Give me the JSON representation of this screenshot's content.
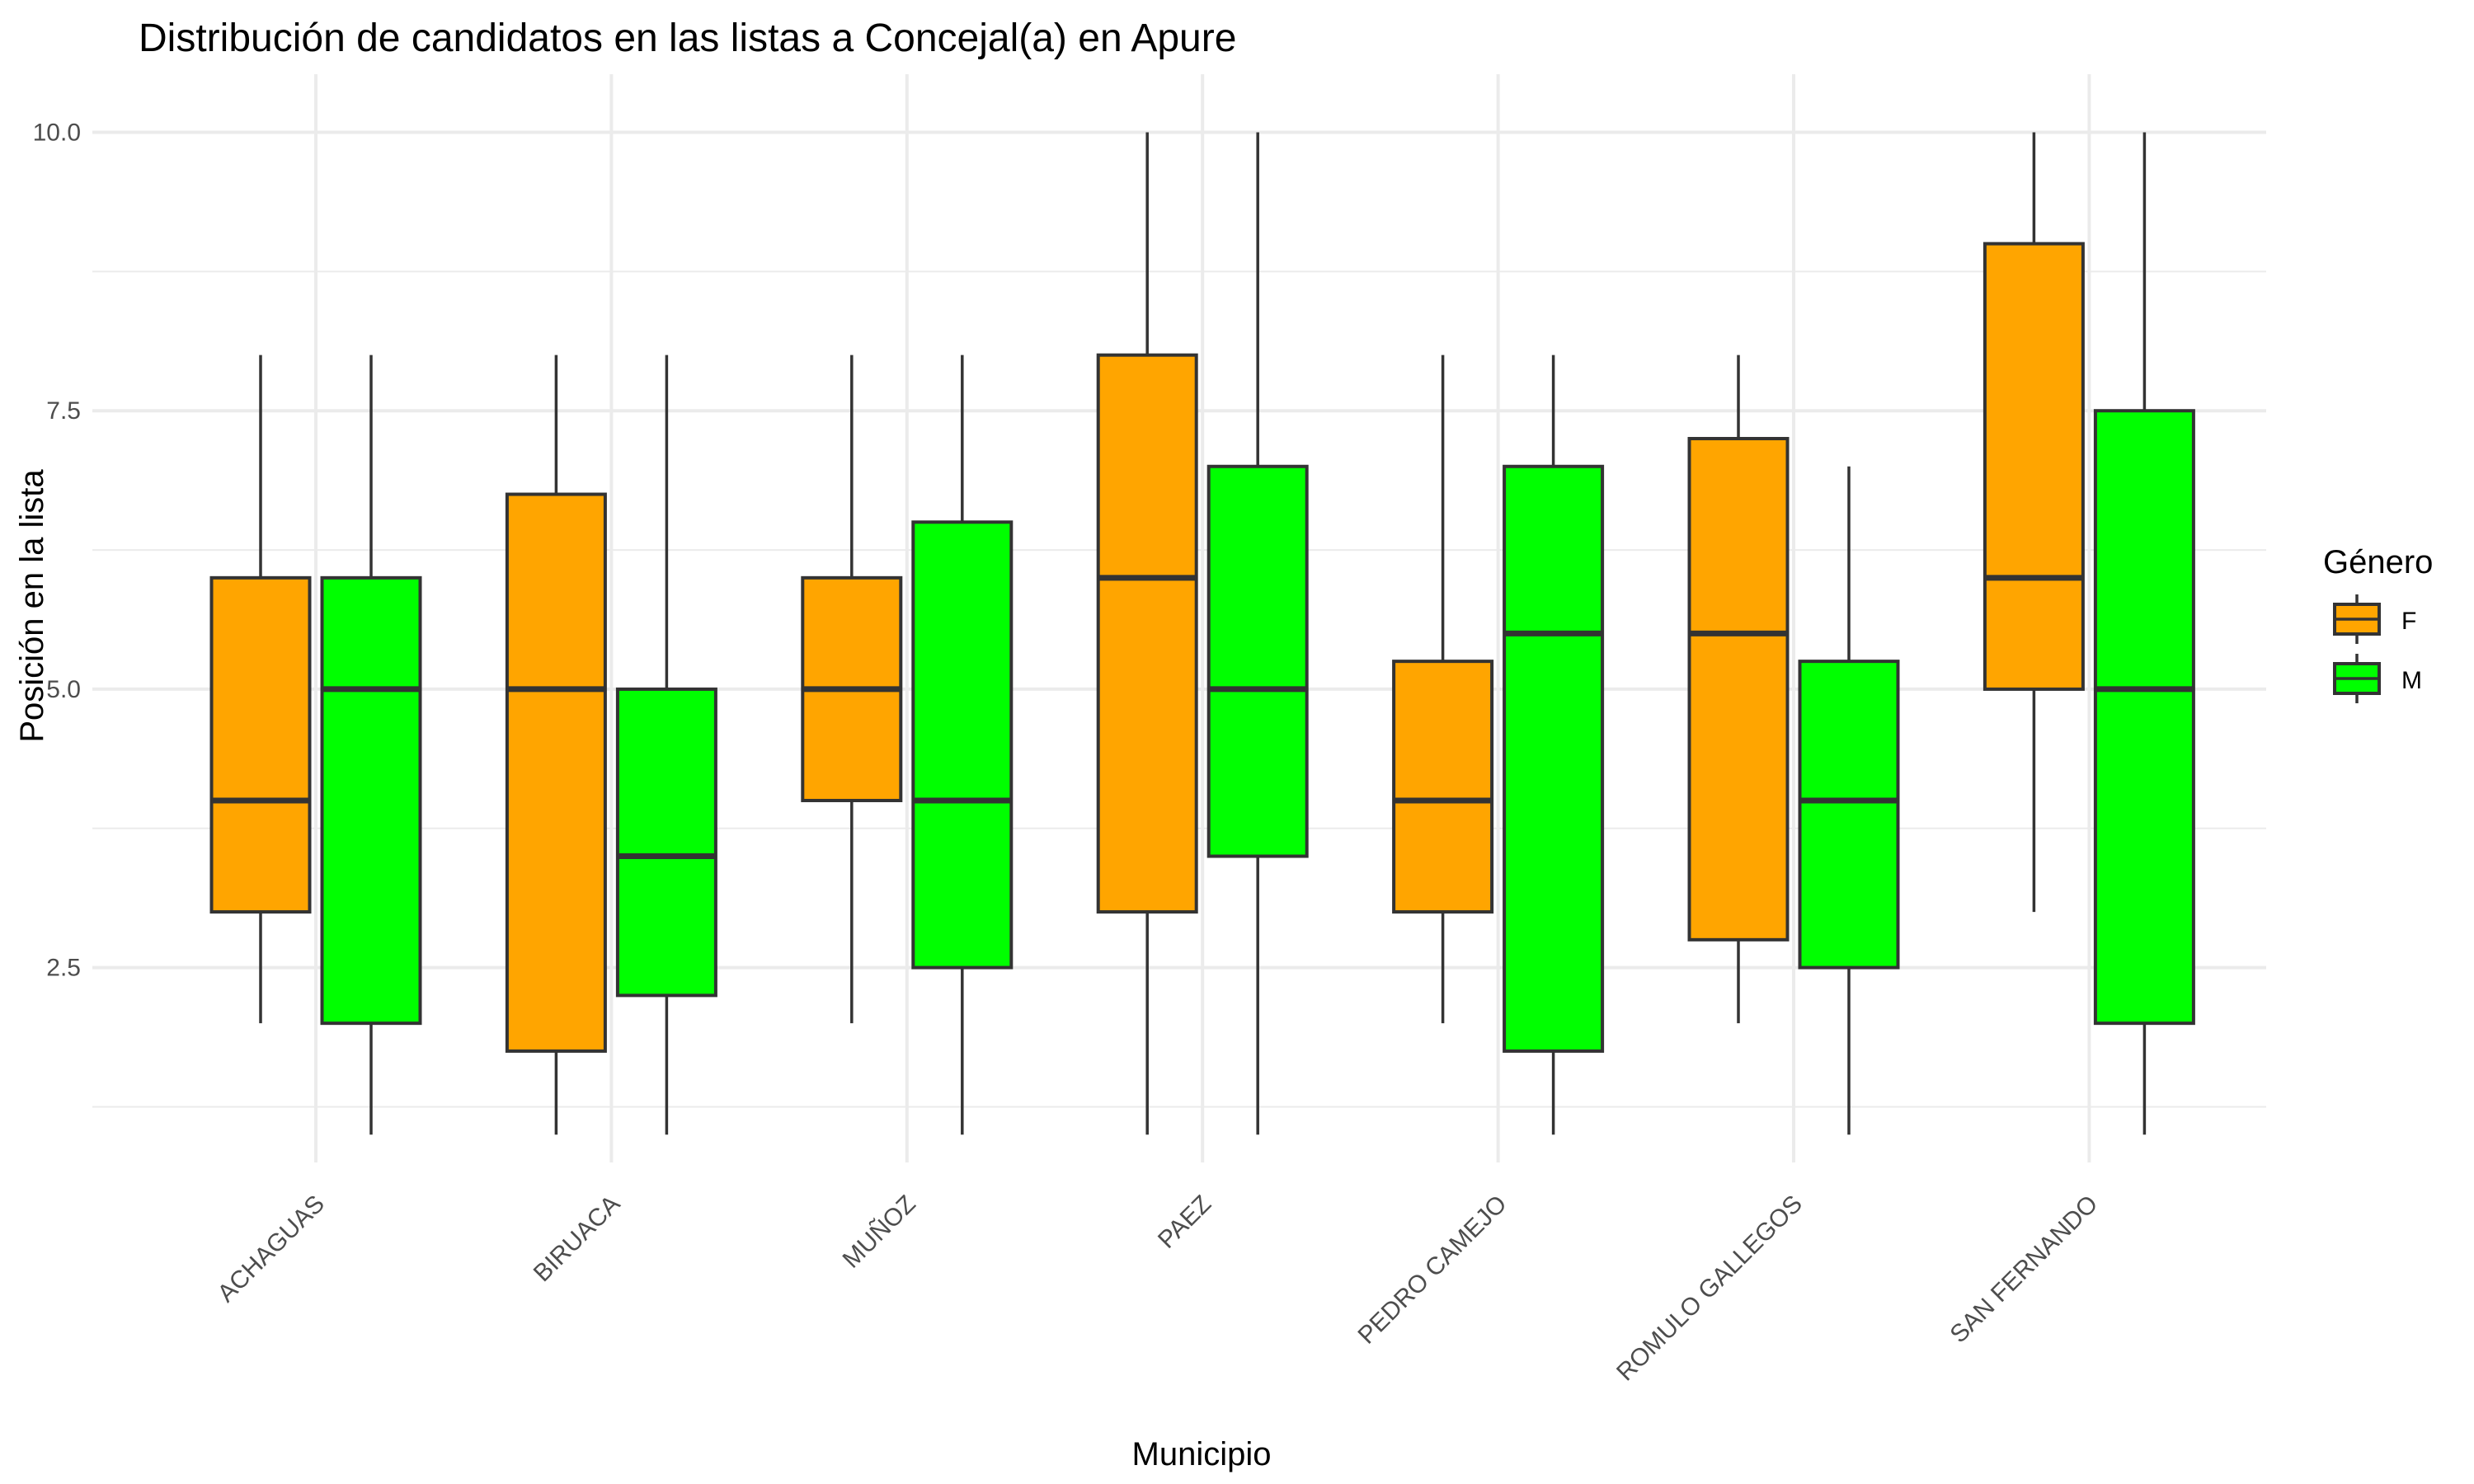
{
  "chart_data": {
    "type": "boxplot",
    "title": "Distribución de candidatos en las listas a Concejal(a) en Apure",
    "xlabel": "Municipio",
    "ylabel": "Posición en la lista",
    "ylim": [
      0.75,
      10.3
    ],
    "y_ticks": [
      "2.5",
      "5.0",
      "7.5",
      "10.0"
    ],
    "categories": [
      "ACHAGUAS",
      "BIRUACA",
      "MUÑOZ",
      "PAEZ",
      "PEDRO CAMEJO",
      "ROMULO GALLEGOS",
      "SAN FERNANDO"
    ],
    "legend": {
      "title": "Género",
      "placement": "right",
      "items": [
        {
          "key": "F",
          "label": "F",
          "color": "#FFA500"
        },
        {
          "key": "M",
          "label": "M",
          "color": "#00FF00"
        }
      ]
    },
    "grid": true,
    "series": [
      {
        "key": "F",
        "color": "#FFA500",
        "boxes": [
          {
            "min": 2,
            "q1": 3,
            "median": 4,
            "q3": 6,
            "max": 8
          },
          {
            "min": 1,
            "q1": 1.75,
            "median": 5,
            "q3": 6.75,
            "max": 8
          },
          {
            "min": 2,
            "q1": 4,
            "median": 5,
            "q3": 6,
            "max": 8
          },
          {
            "min": 1,
            "q1": 3,
            "median": 6,
            "q3": 8,
            "max": 10
          },
          {
            "min": 2,
            "q1": 3,
            "median": 4,
            "q3": 5.25,
            "max": 8
          },
          {
            "min": 2,
            "q1": 2.75,
            "median": 5.5,
            "q3": 7.25,
            "max": 8
          },
          {
            "min": 3,
            "q1": 5,
            "median": 6,
            "q3": 9,
            "max": 10
          }
        ]
      },
      {
        "key": "M",
        "color": "#00FF00",
        "boxes": [
          {
            "min": 1,
            "q1": 2,
            "median": 5,
            "q3": 6,
            "max": 8
          },
          {
            "min": 1,
            "q1": 2.25,
            "median": 3.5,
            "q3": 5,
            "max": 8
          },
          {
            "min": 1,
            "q1": 2.5,
            "median": 4,
            "q3": 6.5,
            "max": 8
          },
          {
            "min": 1,
            "q1": 3.5,
            "median": 5,
            "q3": 7,
            "max": 10
          },
          {
            "min": 1,
            "q1": 1.75,
            "median": 5.5,
            "q3": 7,
            "max": 8
          },
          {
            "min": 1,
            "q1": 2.5,
            "median": 4,
            "q3": 5.25,
            "max": 7
          },
          {
            "min": 1,
            "q1": 2,
            "median": 5,
            "q3": 7.5,
            "max": 10
          }
        ]
      }
    ]
  }
}
